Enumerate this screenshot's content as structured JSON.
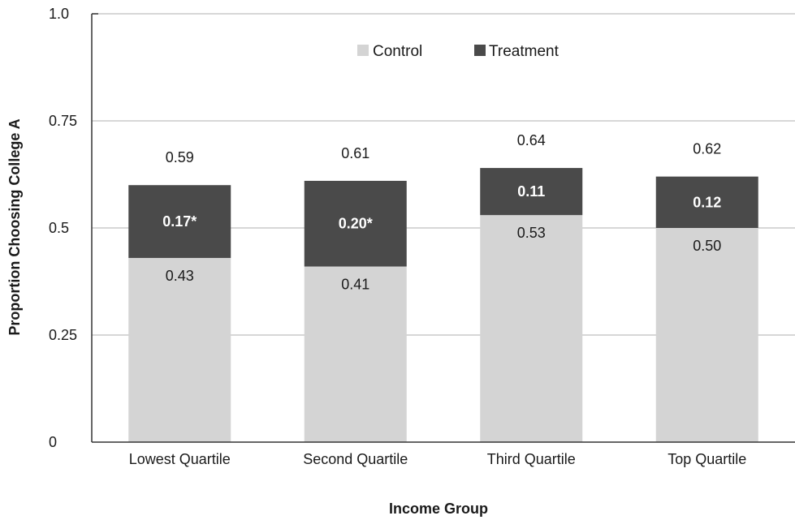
{
  "chart_data": {
    "type": "bar",
    "stacked": true,
    "title": "",
    "xlabel": "Income Group",
    "ylabel": "Proportion Choosing College A",
    "ylim": [
      0,
      1.0
    ],
    "y_ticks": [
      {
        "value": 0,
        "label": "0"
      },
      {
        "value": 0.25,
        "label": "0.25"
      },
      {
        "value": 0.5,
        "label": "0.5"
      },
      {
        "value": 0.75,
        "label": "0.75"
      },
      {
        "value": 1.0,
        "label": "1.0"
      }
    ],
    "grid": true,
    "legend_position": "top-center",
    "categories": [
      "Lowest Quartile",
      "Second Quartile",
      "Third Quartile",
      "Top Quartile"
    ],
    "series": [
      {
        "name": "Control",
        "color": "#d4d4d4",
        "values": [
          0.43,
          0.41,
          0.53,
          0.5
        ],
        "labels": [
          "0.43",
          "0.41",
          "0.53",
          "0.50"
        ]
      },
      {
        "name": "Treatment",
        "color": "#4a4a4a",
        "values": [
          0.17,
          0.2,
          0.11,
          0.12
        ],
        "labels": [
          "0.17*",
          "0.20*",
          "0.11",
          "0.12"
        ]
      }
    ],
    "totals": [
      "0.59",
      "0.61",
      "0.64",
      "0.62"
    ],
    "colors": {
      "grid": "#bfbfbf",
      "axis": "#333333"
    }
  }
}
